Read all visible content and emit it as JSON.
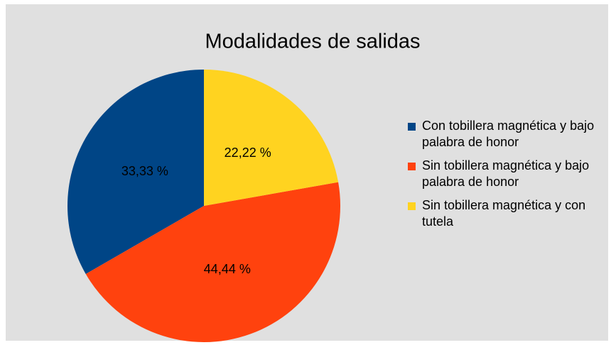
{
  "chart_data": {
    "type": "pie",
    "title": "Modalidades de salidas",
    "categories": [
      "Con tobillera magnética y bajo palabra de honor",
      "Sin tobillera magnética y bajo palabra de honor",
      "Sin tobillera magnética y con tutela"
    ],
    "values": [
      33.33,
      44.44,
      22.22
    ],
    "value_labels": [
      "33,33 %",
      "44,44 %",
      "22,22 %"
    ],
    "colors": [
      "#004586",
      "#ff420e",
      "#ffd320"
    ],
    "legend": "right"
  }
}
